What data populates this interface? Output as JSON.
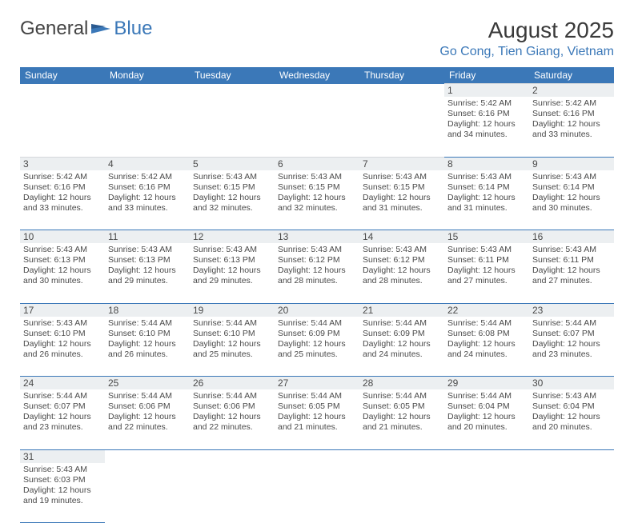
{
  "logo": {
    "text1": "General",
    "text2": "Blue"
  },
  "title": "August 2025",
  "location": "Go Cong, Tien Giang, Vietnam",
  "colors": {
    "header_bg": "#3b78b8",
    "header_fg": "#ffffff",
    "daynum_bg": "#eceff1",
    "border": "#3b78b8",
    "text": "#4a4a4a",
    "accent": "#3b78b8"
  },
  "day_headers": [
    "Sunday",
    "Monday",
    "Tuesday",
    "Wednesday",
    "Thursday",
    "Friday",
    "Saturday"
  ],
  "weeks": [
    [
      null,
      null,
      null,
      null,
      null,
      {
        "n": "1",
        "sr": "5:42 AM",
        "ss": "6:16 PM",
        "dl": "12 hours and 34 minutes."
      },
      {
        "n": "2",
        "sr": "5:42 AM",
        "ss": "6:16 PM",
        "dl": "12 hours and 33 minutes."
      }
    ],
    [
      {
        "n": "3",
        "sr": "5:42 AM",
        "ss": "6:16 PM",
        "dl": "12 hours and 33 minutes."
      },
      {
        "n": "4",
        "sr": "5:42 AM",
        "ss": "6:16 PM",
        "dl": "12 hours and 33 minutes."
      },
      {
        "n": "5",
        "sr": "5:43 AM",
        "ss": "6:15 PM",
        "dl": "12 hours and 32 minutes."
      },
      {
        "n": "6",
        "sr": "5:43 AM",
        "ss": "6:15 PM",
        "dl": "12 hours and 32 minutes."
      },
      {
        "n": "7",
        "sr": "5:43 AM",
        "ss": "6:15 PM",
        "dl": "12 hours and 31 minutes."
      },
      {
        "n": "8",
        "sr": "5:43 AM",
        "ss": "6:14 PM",
        "dl": "12 hours and 31 minutes."
      },
      {
        "n": "9",
        "sr": "5:43 AM",
        "ss": "6:14 PM",
        "dl": "12 hours and 30 minutes."
      }
    ],
    [
      {
        "n": "10",
        "sr": "5:43 AM",
        "ss": "6:13 PM",
        "dl": "12 hours and 30 minutes."
      },
      {
        "n": "11",
        "sr": "5:43 AM",
        "ss": "6:13 PM",
        "dl": "12 hours and 29 minutes."
      },
      {
        "n": "12",
        "sr": "5:43 AM",
        "ss": "6:13 PM",
        "dl": "12 hours and 29 minutes."
      },
      {
        "n": "13",
        "sr": "5:43 AM",
        "ss": "6:12 PM",
        "dl": "12 hours and 28 minutes."
      },
      {
        "n": "14",
        "sr": "5:43 AM",
        "ss": "6:12 PM",
        "dl": "12 hours and 28 minutes."
      },
      {
        "n": "15",
        "sr": "5:43 AM",
        "ss": "6:11 PM",
        "dl": "12 hours and 27 minutes."
      },
      {
        "n": "16",
        "sr": "5:43 AM",
        "ss": "6:11 PM",
        "dl": "12 hours and 27 minutes."
      }
    ],
    [
      {
        "n": "17",
        "sr": "5:43 AM",
        "ss": "6:10 PM",
        "dl": "12 hours and 26 minutes."
      },
      {
        "n": "18",
        "sr": "5:44 AM",
        "ss": "6:10 PM",
        "dl": "12 hours and 26 minutes."
      },
      {
        "n": "19",
        "sr": "5:44 AM",
        "ss": "6:10 PM",
        "dl": "12 hours and 25 minutes."
      },
      {
        "n": "20",
        "sr": "5:44 AM",
        "ss": "6:09 PM",
        "dl": "12 hours and 25 minutes."
      },
      {
        "n": "21",
        "sr": "5:44 AM",
        "ss": "6:09 PM",
        "dl": "12 hours and 24 minutes."
      },
      {
        "n": "22",
        "sr": "5:44 AM",
        "ss": "6:08 PM",
        "dl": "12 hours and 24 minutes."
      },
      {
        "n": "23",
        "sr": "5:44 AM",
        "ss": "6:07 PM",
        "dl": "12 hours and 23 minutes."
      }
    ],
    [
      {
        "n": "24",
        "sr": "5:44 AM",
        "ss": "6:07 PM",
        "dl": "12 hours and 23 minutes."
      },
      {
        "n": "25",
        "sr": "5:44 AM",
        "ss": "6:06 PM",
        "dl": "12 hours and 22 minutes."
      },
      {
        "n": "26",
        "sr": "5:44 AM",
        "ss": "6:06 PM",
        "dl": "12 hours and 22 minutes."
      },
      {
        "n": "27",
        "sr": "5:44 AM",
        "ss": "6:05 PM",
        "dl": "12 hours and 21 minutes."
      },
      {
        "n": "28",
        "sr": "5:44 AM",
        "ss": "6:05 PM",
        "dl": "12 hours and 21 minutes."
      },
      {
        "n": "29",
        "sr": "5:44 AM",
        "ss": "6:04 PM",
        "dl": "12 hours and 20 minutes."
      },
      {
        "n": "30",
        "sr": "5:43 AM",
        "ss": "6:04 PM",
        "dl": "12 hours and 20 minutes."
      }
    ],
    [
      {
        "n": "31",
        "sr": "5:43 AM",
        "ss": "6:03 PM",
        "dl": "12 hours and 19 minutes."
      },
      null,
      null,
      null,
      null,
      null,
      null
    ]
  ],
  "labels": {
    "sunrise": "Sunrise:",
    "sunset": "Sunset:",
    "daylight": "Daylight:"
  }
}
